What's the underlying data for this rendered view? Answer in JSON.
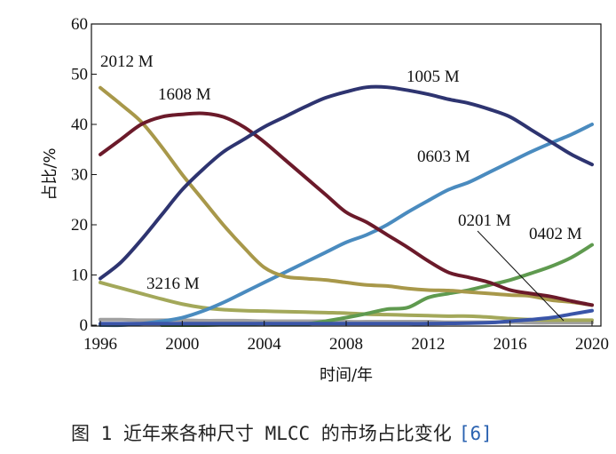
{
  "chart_data": {
    "type": "line",
    "caption": "图 1   近年来各种尺寸 MLCC 的市场占比变化",
    "caption_ref": "[6]",
    "xlabel": "时间/年",
    "ylabel": "占比/%",
    "xlim": [
      1996,
      2020
    ],
    "ylim": [
      0,
      60
    ],
    "xticks": [
      1996,
      2000,
      2004,
      2008,
      2012,
      2016,
      2020
    ],
    "yticks": [
      0,
      10,
      20,
      30,
      40,
      50,
      60
    ],
    "grid": false,
    "x": [
      1996,
      1997,
      1998,
      1999,
      2000,
      2001,
      2002,
      2003,
      2004,
      2005,
      2006,
      2007,
      2008,
      2009,
      2010,
      2011,
      2012,
      2013,
      2014,
      2015,
      2016,
      2017,
      2018,
      2019,
      2020
    ],
    "series": [
      {
        "name": "",
        "color": "#a0a0a0",
        "values": [
          1.1,
          1.1,
          1.0,
          1.0,
          1.0,
          0.9,
          0.9,
          0.9,
          0.8,
          0.8,
          0.8,
          0.8,
          0.7,
          0.7,
          0.7,
          0.7,
          0.7,
          0.6,
          0.6,
          0.6,
          0.6,
          0.5,
          0.5,
          0.5,
          0.5
        ]
      },
      {
        "name": "3216 M",
        "color": "#a3a85a",
        "values": [
          8.5,
          7.4,
          6.3,
          5.2,
          4.2,
          3.5,
          3.1,
          2.9,
          2.8,
          2.7,
          2.6,
          2.5,
          2.4,
          2.2,
          2.1,
          2.0,
          1.9,
          1.8,
          1.8,
          1.6,
          1.3,
          1.1,
          1.0,
          1.0,
          1.0
        ]
      },
      {
        "name": "0603 M",
        "color": "#4a8bbf",
        "values": [
          0,
          0,
          0.3,
          0.8,
          1.5,
          2.8,
          4.5,
          6.5,
          8.5,
          10.5,
          12.5,
          14.5,
          16.5,
          18,
          20,
          22.5,
          24.8,
          27,
          28.5,
          30.5,
          32.5,
          34.5,
          36.3,
          38,
          40
        ]
      },
      {
        "name": "0402 M",
        "color": "#5f9a4f",
        "values": [
          null,
          null,
          null,
          0,
          0,
          0,
          0.1,
          0.2,
          0.3,
          0.2,
          0.2,
          0.8,
          1.5,
          2.3,
          3.2,
          3.5,
          5.5,
          6.3,
          7,
          8,
          9,
          10.3,
          11.7,
          13.5,
          16
        ]
      },
      {
        "name": "0201 M",
        "color": "#3a55a8",
        "values": [
          0.3,
          0.3,
          0.3,
          0.3,
          0.3,
          0.3,
          0.3,
          0.3,
          0.3,
          0.3,
          0.3,
          0.3,
          0.3,
          0.3,
          0.3,
          0.3,
          0.3,
          0.35,
          0.4,
          0.5,
          0.8,
          1.1,
          1.5,
          2.2,
          2.9
        ]
      },
      {
        "name": "2012 M",
        "color": "#a8984a",
        "values": [
          47.3,
          44,
          40.5,
          35.5,
          30,
          25,
          20,
          15.5,
          11.5,
          9.7,
          9.3,
          9,
          8.5,
          8,
          7.8,
          7.3,
          7,
          6.9,
          6.6,
          6.3,
          6,
          5.8,
          5,
          4.6,
          4
        ]
      },
      {
        "name": "1608 M",
        "color": "#6b1a2a",
        "values": [
          34,
          37,
          40,
          41.5,
          42,
          42.2,
          41.5,
          39.5,
          36.5,
          33,
          29.5,
          26,
          22.5,
          20.5,
          18,
          15.5,
          12.8,
          10.5,
          9.5,
          8.5,
          7,
          6.3,
          5.7,
          4.8,
          4
        ]
      },
      {
        "name": "1005 M",
        "color": "#2e3470",
        "values": [
          9.3,
          12.5,
          17,
          22,
          27,
          31,
          34.5,
          37,
          39.5,
          41.5,
          43.5,
          45.3,
          46.5,
          47.4,
          47.4,
          46.8,
          46,
          45,
          44.2,
          43,
          41.5,
          39,
          36.5,
          34,
          32
        ]
      }
    ]
  }
}
